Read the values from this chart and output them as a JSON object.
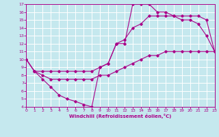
{
  "xlabel": "Windchill (Refroidissement éolien,°C)",
  "xlim": [
    0,
    23
  ],
  "ylim": [
    4,
    17
  ],
  "xticks": [
    0,
    1,
    2,
    3,
    4,
    5,
    6,
    7,
    8,
    9,
    10,
    11,
    12,
    13,
    14,
    15,
    16,
    17,
    18,
    19,
    20,
    21,
    22,
    23
  ],
  "yticks": [
    4,
    5,
    6,
    7,
    8,
    9,
    10,
    11,
    12,
    13,
    14,
    15,
    16,
    17
  ],
  "bg_color": "#c5e8ee",
  "line_color": "#aa0088",
  "grid_color": "#ffffff",
  "curve1_x": [
    0,
    1,
    2,
    3,
    4,
    5,
    6,
    7,
    8,
    9,
    10,
    11,
    12,
    13,
    14,
    15,
    16,
    17,
    18,
    19,
    20,
    21,
    22,
    23
  ],
  "curve1_y": [
    10,
    8.5,
    7.5,
    6.5,
    5.5,
    5.0,
    4.7,
    4.3,
    4.0,
    9.0,
    9.5,
    12.0,
    12.0,
    17.0,
    17.0,
    17.0,
    16.0,
    16.0,
    15.5,
    15.0,
    15.0,
    14.5,
    13.0,
    11.0
  ],
  "curve2_x": [
    0,
    1,
    2,
    3,
    4,
    5,
    6,
    7,
    8,
    9,
    10,
    11,
    12,
    13,
    14,
    15,
    16,
    17,
    18,
    19,
    20,
    21,
    22,
    23
  ],
  "curve2_y": [
    10,
    8.5,
    8.5,
    8.5,
    8.5,
    8.5,
    8.5,
    8.5,
    8.5,
    9.0,
    9.5,
    12.0,
    12.5,
    14.0,
    14.5,
    15.5,
    15.5,
    15.5,
    15.5,
    15.5,
    15.5,
    15.5,
    15.0,
    11.0
  ],
  "curve3_x": [
    0,
    1,
    2,
    3,
    4,
    5,
    6,
    7,
    8,
    9,
    10,
    11,
    12,
    13,
    14,
    15,
    16,
    17,
    18,
    19,
    20,
    21,
    22,
    23
  ],
  "curve3_y": [
    10,
    8.5,
    8.0,
    7.5,
    7.5,
    7.5,
    7.5,
    7.5,
    7.5,
    8.0,
    8.0,
    8.5,
    9.0,
    9.5,
    10.0,
    10.5,
    10.5,
    11.0,
    11.0,
    11.0,
    11.0,
    11.0,
    11.0,
    11.0
  ]
}
